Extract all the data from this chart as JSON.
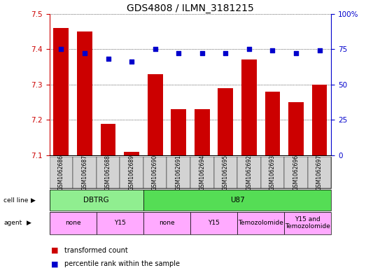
{
  "title": "GDS4808 / ILMN_3181215",
  "samples": [
    "GSM1062686",
    "GSM1062687",
    "GSM1062688",
    "GSM1062689",
    "GSM1062690",
    "GSM1062691",
    "GSM1062694",
    "GSM1062695",
    "GSM1062692",
    "GSM1062693",
    "GSM1062696",
    "GSM1062697"
  ],
  "bar_values": [
    7.46,
    7.45,
    7.19,
    7.11,
    7.33,
    7.23,
    7.23,
    7.29,
    7.37,
    7.28,
    7.25,
    7.3
  ],
  "dot_values": [
    75,
    72,
    68,
    66,
    75,
    72,
    72,
    72,
    75,
    74,
    72,
    74
  ],
  "ylim_left": [
    7.1,
    7.5
  ],
  "ylim_right": [
    0,
    100
  ],
  "yticks_left": [
    7.1,
    7.2,
    7.3,
    7.4,
    7.5
  ],
  "yticks_right": [
    0,
    25,
    50,
    75,
    100
  ],
  "bar_color": "#cc0000",
  "dot_color": "#0000cc",
  "cell_line_groups": [
    {
      "label": "DBTRG",
      "start": 0,
      "end": 3,
      "color": "#90ee90"
    },
    {
      "label": "U87",
      "start": 4,
      "end": 11,
      "color": "#55dd55"
    }
  ],
  "agent_groups": [
    {
      "label": "none",
      "start": 0,
      "end": 1,
      "color": "#ffaaff"
    },
    {
      "label": "Y15",
      "start": 2,
      "end": 3,
      "color": "#ffaaff"
    },
    {
      "label": "none",
      "start": 4,
      "end": 5,
      "color": "#ffaaff"
    },
    {
      "label": "Y15",
      "start": 6,
      "end": 7,
      "color": "#ffaaff"
    },
    {
      "label": "Temozolomide",
      "start": 8,
      "end": 9,
      "color": "#ffaaff"
    },
    {
      "label": "Y15 and\nTemozolomide",
      "start": 10,
      "end": 11,
      "color": "#ffaaff"
    }
  ],
  "legend_items": [
    {
      "label": "transformed count",
      "color": "#cc0000"
    },
    {
      "label": "percentile rank within the sample",
      "color": "#0000cc"
    }
  ],
  "left_color": "#cc0000",
  "right_color": "#0000cc",
  "sample_bg": "#d3d3d3",
  "title_fontsize": 10,
  "tick_fontsize": 7.5,
  "sample_fontsize": 5.5,
  "band_fontsize": 7.5,
  "legend_fontsize": 7
}
